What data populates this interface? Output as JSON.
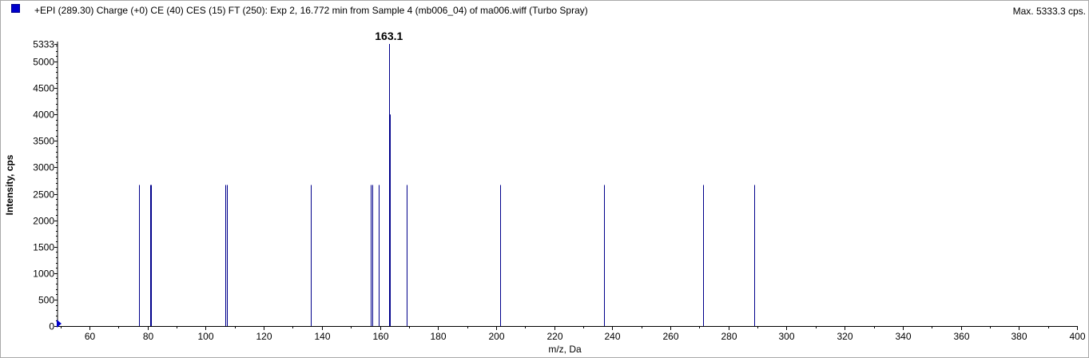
{
  "header": {
    "title": "+EPI (289.30) Charge (+0) CE (40) CES (15) FT (250): Exp 2, 16.772 min from Sample 4 (mb006_04) of ma006.wiff (Turbo Spray)",
    "max_label": "Max. 5333.3 cps.",
    "marker_color": "#0000cc"
  },
  "chart_data": {
    "type": "bar",
    "xlabel": "m/z, Da",
    "ylabel": "Intensity, cps",
    "xlim": [
      49,
      400
    ],
    "ylim": [
      0,
      5333
    ],
    "x_ticks": [
      60,
      80,
      100,
      120,
      140,
      160,
      180,
      200,
      220,
      240,
      260,
      280,
      300,
      320,
      340,
      360,
      380,
      400
    ],
    "y_ticks": [
      0,
      500,
      1000,
      1500,
      2000,
      2500,
      3000,
      3500,
      4000,
      4500,
      5000,
      5333
    ],
    "series": [
      {
        "color": "#00008b",
        "peaks": [
          {
            "mz": 77.0,
            "intensity": 2667
          },
          {
            "mz": 80.9,
            "intensity": 2667
          },
          {
            "mz": 81.3,
            "intensity": 2667
          },
          {
            "mz": 106.9,
            "intensity": 2667
          },
          {
            "mz": 107.2,
            "intensity": 2667
          },
          {
            "mz": 136.3,
            "intensity": 2667
          },
          {
            "mz": 156.9,
            "intensity": 2667
          },
          {
            "mz": 157.4,
            "intensity": 2667
          },
          {
            "mz": 159.5,
            "intensity": 2667
          },
          {
            "mz": 163.1,
            "intensity": 5333
          },
          {
            "mz": 163.4,
            "intensity": 4000
          },
          {
            "mz": 169.3,
            "intensity": 2667
          },
          {
            "mz": 201.4,
            "intensity": 2667
          },
          {
            "mz": 237.1,
            "intensity": 2667
          },
          {
            "mz": 271.2,
            "intensity": 2667
          },
          {
            "mz": 289.0,
            "intensity": 2667
          }
        ]
      }
    ],
    "annotations": [
      {
        "text": "163.1",
        "mz": 163.1,
        "intensity": 5333
      }
    ]
  }
}
